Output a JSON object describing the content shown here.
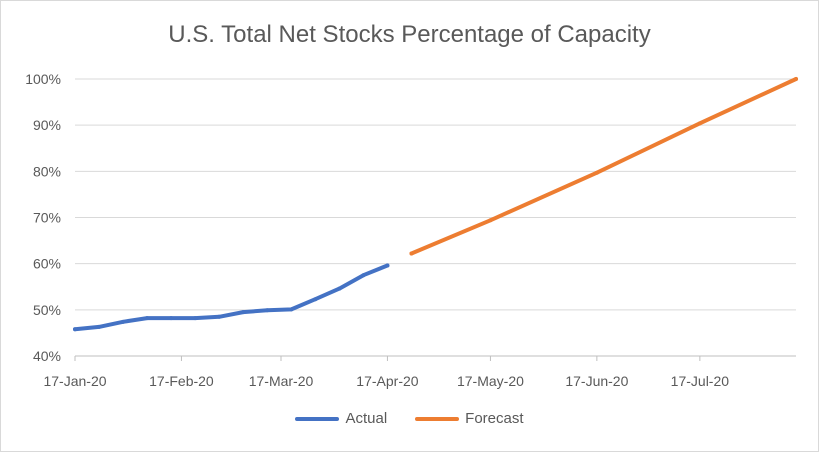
{
  "chart_data": {
    "type": "line",
    "title": "U.S. Total Net Stocks Percentage of Capacity",
    "xlabel": "",
    "ylabel": "",
    "x_range": [
      "2020-01-17",
      "2020-08-14"
    ],
    "ylim": [
      40,
      100
    ],
    "y_ticks": [
      "40%",
      "50%",
      "60%",
      "70%",
      "80%",
      "90%",
      "100%"
    ],
    "x_ticks": [
      {
        "date": "2020-01-17",
        "label": "17-Jan-20"
      },
      {
        "date": "2020-02-17",
        "label": "17-Feb-20"
      },
      {
        "date": "2020-03-17",
        "label": "17-Mar-20"
      },
      {
        "date": "2020-04-17",
        "label": "17-Apr-20"
      },
      {
        "date": "2020-05-17",
        "label": "17-May-20"
      },
      {
        "date": "2020-06-17",
        "label": "17-Jun-20"
      },
      {
        "date": "2020-07-17",
        "label": "17-Jul-20"
      }
    ],
    "grid": true,
    "legend_position": "bottom",
    "series": [
      {
        "name": "Actual",
        "color": "#4472C4",
        "points": [
          {
            "x": "2020-01-17",
            "y": 45.8
          },
          {
            "x": "2020-01-24",
            "y": 46.3
          },
          {
            "x": "2020-01-31",
            "y": 47.4
          },
          {
            "x": "2020-02-07",
            "y": 48.2
          },
          {
            "x": "2020-02-14",
            "y": 48.2
          },
          {
            "x": "2020-02-21",
            "y": 48.2
          },
          {
            "x": "2020-02-28",
            "y": 48.5
          },
          {
            "x": "2020-03-06",
            "y": 49.5
          },
          {
            "x": "2020-03-13",
            "y": 49.9
          },
          {
            "x": "2020-03-20",
            "y": 50.1
          },
          {
            "x": "2020-03-27",
            "y": 52.3
          },
          {
            "x": "2020-04-03",
            "y": 54.6
          },
          {
            "x": "2020-04-10",
            "y": 57.5
          },
          {
            "x": "2020-04-17",
            "y": 59.6
          }
        ]
      },
      {
        "name": "Forecast",
        "color": "#ED7D31",
        "points": [
          {
            "x": "2020-04-24",
            "y": 62.2
          },
          {
            "x": "2020-05-17",
            "y": 69.4
          },
          {
            "x": "2020-06-17",
            "y": 79.7
          },
          {
            "x": "2020-07-17",
            "y": 90.4
          },
          {
            "x": "2020-08-14",
            "y": 100.0
          }
        ]
      }
    ]
  }
}
